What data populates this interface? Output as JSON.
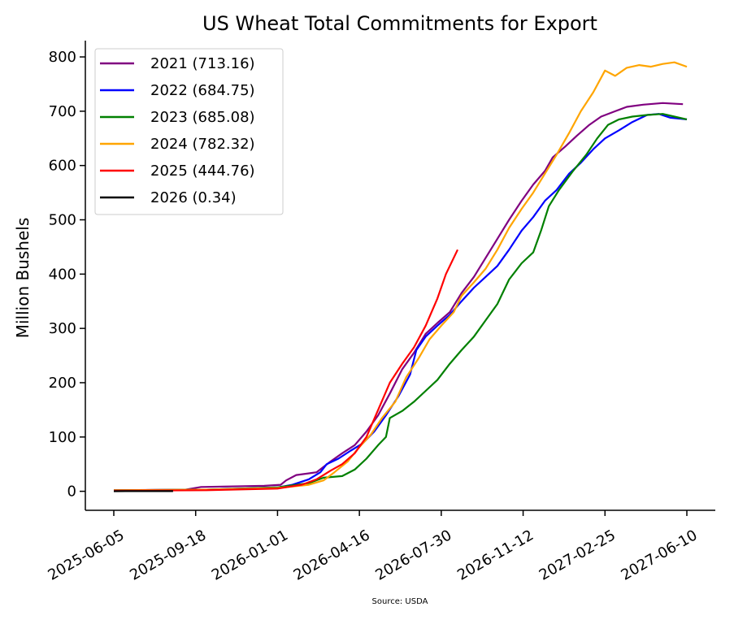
{
  "chart_data": {
    "type": "line",
    "title": "US Wheat Total Commitments for Export",
    "xlabel": "",
    "ylabel": "Million Bushels",
    "source": "Source: USDA",
    "x_domain": [
      "2025-06-05",
      "2027-06-10"
    ],
    "xticks": [
      "2025-06-05",
      "2025-09-18",
      "2026-01-01",
      "2026-04-16",
      "2026-07-30",
      "2026-11-12",
      "2027-02-25",
      "2027-06-10"
    ],
    "ylim": [
      -35,
      830
    ],
    "yticks": [
      0,
      100,
      200,
      300,
      400,
      500,
      600,
      700,
      800
    ],
    "grid": false,
    "legend_position": "top-left",
    "series": [
      {
        "name": "2021 (713.16)",
        "color": "#800080",
        "points": [
          [
            "2025-06-05",
            2
          ],
          [
            "2025-09-05",
            3
          ],
          [
            "2025-09-25",
            8
          ],
          [
            "2025-12-15",
            10
          ],
          [
            "2026-01-05",
            12
          ],
          [
            "2026-01-12",
            20
          ],
          [
            "2026-01-25",
            30
          ],
          [
            "2026-02-20",
            35
          ],
          [
            "2026-03-10",
            55
          ],
          [
            "2026-03-25",
            70
          ],
          [
            "2026-04-10",
            85
          ],
          [
            "2026-04-25",
            110
          ],
          [
            "2026-05-10",
            140
          ],
          [
            "2026-05-25",
            180
          ],
          [
            "2026-06-10",
            225
          ],
          [
            "2026-06-25",
            255
          ],
          [
            "2026-07-10",
            290
          ],
          [
            "2026-07-25",
            310
          ],
          [
            "2026-08-10",
            330
          ],
          [
            "2026-08-25",
            365
          ],
          [
            "2026-09-10",
            395
          ],
          [
            "2026-09-25",
            430
          ],
          [
            "2026-10-10",
            465
          ],
          [
            "2026-10-25",
            500
          ],
          [
            "2026-11-10",
            535
          ],
          [
            "2026-11-25",
            565
          ],
          [
            "2026-12-10",
            590
          ],
          [
            "2026-12-20",
            615
          ],
          [
            "2027-01-05",
            635
          ],
          [
            "2027-01-20",
            655
          ],
          [
            "2027-02-05",
            675
          ],
          [
            "2027-02-20",
            690
          ],
          [
            "2027-03-10",
            700
          ],
          [
            "2027-03-25",
            708
          ],
          [
            "2027-04-15",
            712
          ],
          [
            "2027-05-10",
            715
          ],
          [
            "2027-06-05",
            713
          ]
        ]
      },
      {
        "name": "2022 (684.75)",
        "color": "#0000ff",
        "points": [
          [
            "2025-06-05",
            2
          ],
          [
            "2025-10-01",
            3
          ],
          [
            "2026-01-01",
            7
          ],
          [
            "2026-01-20",
            12
          ],
          [
            "2026-02-10",
            22
          ],
          [
            "2026-02-25",
            35
          ],
          [
            "2026-03-05",
            50
          ],
          [
            "2026-03-20",
            60
          ],
          [
            "2026-04-05",
            75
          ],
          [
            "2026-04-20",
            88
          ],
          [
            "2026-05-05",
            110
          ],
          [
            "2026-05-20",
            140
          ],
          [
            "2026-06-05",
            175
          ],
          [
            "2026-06-20",
            215
          ],
          [
            "2026-06-28",
            260
          ],
          [
            "2026-07-10",
            285
          ],
          [
            "2026-07-25",
            305
          ],
          [
            "2026-08-10",
            325
          ],
          [
            "2026-08-25",
            350
          ],
          [
            "2026-09-10",
            375
          ],
          [
            "2026-09-25",
            395
          ],
          [
            "2026-10-10",
            415
          ],
          [
            "2026-10-25",
            445
          ],
          [
            "2026-11-10",
            480
          ],
          [
            "2026-11-25",
            505
          ],
          [
            "2026-12-10",
            535
          ],
          [
            "2026-12-25",
            555
          ],
          [
            "2027-01-10",
            585
          ],
          [
            "2027-01-25",
            605
          ],
          [
            "2027-02-10",
            630
          ],
          [
            "2027-02-25",
            650
          ],
          [
            "2027-03-15",
            665
          ],
          [
            "2027-04-01",
            680
          ],
          [
            "2027-04-20",
            693
          ],
          [
            "2027-05-05",
            695
          ],
          [
            "2027-05-20",
            688
          ],
          [
            "2027-06-10",
            685
          ]
        ]
      },
      {
        "name": "2023 (685.08)",
        "color": "#008000",
        "points": [
          [
            "2025-06-05",
            2
          ],
          [
            "2025-10-01",
            3
          ],
          [
            "2026-01-01",
            7
          ],
          [
            "2026-02-10",
            15
          ],
          [
            "2026-03-01",
            25
          ],
          [
            "2026-03-25",
            28
          ],
          [
            "2026-04-10",
            40
          ],
          [
            "2026-04-25",
            60
          ],
          [
            "2026-05-10",
            85
          ],
          [
            "2026-05-20",
            100
          ],
          [
            "2026-05-25",
            135
          ],
          [
            "2026-06-10",
            148
          ],
          [
            "2026-06-25",
            165
          ],
          [
            "2026-07-10",
            185
          ],
          [
            "2026-07-25",
            205
          ],
          [
            "2026-08-10",
            235
          ],
          [
            "2026-08-25",
            260
          ],
          [
            "2026-09-10",
            285
          ],
          [
            "2026-09-25",
            315
          ],
          [
            "2026-10-10",
            345
          ],
          [
            "2026-10-25",
            390
          ],
          [
            "2026-11-10",
            420
          ],
          [
            "2026-11-25",
            440
          ],
          [
            "2026-12-05",
            480
          ],
          [
            "2026-12-15",
            525
          ],
          [
            "2026-12-28",
            555
          ],
          [
            "2027-01-15",
            590
          ],
          [
            "2027-02-01",
            620
          ],
          [
            "2027-02-15",
            650
          ],
          [
            "2027-03-01",
            675
          ],
          [
            "2027-03-15",
            685
          ],
          [
            "2027-04-01",
            690
          ],
          [
            "2027-04-20",
            693
          ],
          [
            "2027-05-10",
            695
          ],
          [
            "2027-05-25",
            690
          ],
          [
            "2027-06-10",
            685
          ]
        ]
      },
      {
        "name": "2024 (782.32)",
        "color": "#ffa500",
        "points": [
          [
            "2025-06-05",
            2
          ],
          [
            "2025-10-01",
            3
          ],
          [
            "2026-01-01",
            6
          ],
          [
            "2026-02-10",
            12
          ],
          [
            "2026-03-01",
            20
          ],
          [
            "2026-03-15",
            35
          ],
          [
            "2026-04-01",
            55
          ],
          [
            "2026-04-15",
            80
          ],
          [
            "2026-05-01",
            105
          ],
          [
            "2026-05-15",
            135
          ],
          [
            "2026-06-01",
            165
          ],
          [
            "2026-06-15",
            210
          ],
          [
            "2026-07-01",
            245
          ],
          [
            "2026-07-15",
            280
          ],
          [
            "2026-07-30",
            305
          ],
          [
            "2026-08-15",
            330
          ],
          [
            "2026-08-25",
            360
          ],
          [
            "2026-09-10",
            385
          ],
          [
            "2026-09-25",
            410
          ],
          [
            "2026-10-10",
            445
          ],
          [
            "2026-10-25",
            485
          ],
          [
            "2026-11-10",
            520
          ],
          [
            "2026-11-25",
            550
          ],
          [
            "2026-12-10",
            585
          ],
          [
            "2026-12-25",
            620
          ],
          [
            "2027-01-10",
            660
          ],
          [
            "2027-01-25",
            700
          ],
          [
            "2027-02-10",
            735
          ],
          [
            "2027-02-25",
            775
          ],
          [
            "2027-03-10",
            765
          ],
          [
            "2027-03-25",
            780
          ],
          [
            "2027-04-10",
            785
          ],
          [
            "2027-04-25",
            782
          ],
          [
            "2027-05-10",
            787
          ],
          [
            "2027-05-25",
            790
          ],
          [
            "2027-06-10",
            782
          ]
        ]
      },
      {
        "name": "2025 (444.76)",
        "color": "#ff0000",
        "points": [
          [
            "2025-06-05",
            1
          ],
          [
            "2025-10-01",
            2
          ],
          [
            "2026-01-01",
            5
          ],
          [
            "2026-02-01",
            12
          ],
          [
            "2026-02-20",
            22
          ],
          [
            "2026-03-10",
            38
          ],
          [
            "2026-03-25",
            50
          ],
          [
            "2026-04-10",
            70
          ],
          [
            "2026-04-25",
            100
          ],
          [
            "2026-05-10",
            150
          ],
          [
            "2026-05-25",
            200
          ],
          [
            "2026-06-10",
            235
          ],
          [
            "2026-06-25",
            265
          ],
          [
            "2026-07-10",
            305
          ],
          [
            "2026-07-25",
            355
          ],
          [
            "2026-08-05",
            400
          ],
          [
            "2026-08-20",
            445
          ]
        ]
      },
      {
        "name": "2026 (0.34)",
        "color": "#000000",
        "points": [
          [
            "2025-06-05",
            0.2
          ],
          [
            "2025-06-20",
            0.3
          ],
          [
            "2025-07-05",
            0.3
          ],
          [
            "2025-07-20",
            0.34
          ],
          [
            "2025-08-05",
            0.34
          ],
          [
            "2025-08-20",
            0.34
          ]
        ]
      }
    ]
  }
}
